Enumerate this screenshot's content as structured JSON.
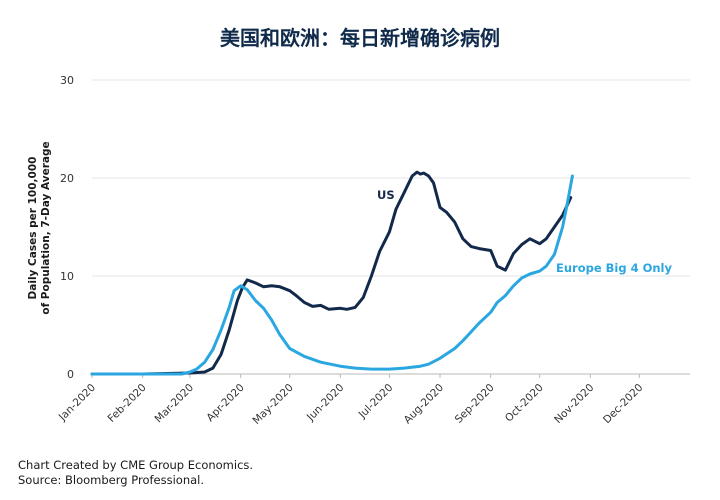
{
  "title": "美国和欧洲：每日新增确诊病例",
  "footer": {
    "line1": "Chart Created by CME Group Economics.",
    "line2": "Source: Bloomberg Professional."
  },
  "chart_data": {
    "type": "line",
    "ylabel": "Daily Cases per 100,000\nof Population, 7-Day Average",
    "xlabel": "",
    "ylim": [
      0,
      30
    ],
    "yticks": [
      0,
      10,
      20,
      30
    ],
    "xticks": [
      "Jan-2020",
      "Feb-2020",
      "Mar-2020",
      "Apr-2020",
      "May-2020",
      "Jun-2020",
      "Jul-2020",
      "Aug-2020",
      "Sep-2020",
      "Oct-2020",
      "Nov-2020",
      "Dec-2020"
    ],
    "grid": true,
    "series": [
      {
        "name": "US",
        "color": "#13294b",
        "x": [
          "2020-01-01",
          "2020-02-01",
          "2020-03-01",
          "2020-03-10",
          "2020-03-15",
          "2020-03-20",
          "2020-03-25",
          "2020-03-30",
          "2020-04-02",
          "2020-04-05",
          "2020-04-10",
          "2020-04-15",
          "2020-04-20",
          "2020-04-25",
          "2020-05-01",
          "2020-05-05",
          "2020-05-10",
          "2020-05-15",
          "2020-05-20",
          "2020-05-25",
          "2020-06-01",
          "2020-06-05",
          "2020-06-10",
          "2020-06-15",
          "2020-06-20",
          "2020-06-25",
          "2020-07-01",
          "2020-07-05",
          "2020-07-10",
          "2020-07-15",
          "2020-07-18",
          "2020-07-20",
          "2020-07-22",
          "2020-07-25",
          "2020-07-28",
          "2020-08-01",
          "2020-08-05",
          "2020-08-10",
          "2020-08-15",
          "2020-08-20",
          "2020-08-25",
          "2020-09-01",
          "2020-09-05",
          "2020-09-10",
          "2020-09-15",
          "2020-09-20",
          "2020-09-25",
          "2020-10-01",
          "2020-10-05",
          "2020-10-10",
          "2020-10-15",
          "2020-10-20"
        ],
        "values": [
          0,
          0,
          0.1,
          0.2,
          0.6,
          2.0,
          4.5,
          7.5,
          8.8,
          9.6,
          9.3,
          8.9,
          9.0,
          8.9,
          8.5,
          8.0,
          7.3,
          6.9,
          7.0,
          6.6,
          6.7,
          6.6,
          6.8,
          7.8,
          10.0,
          12.5,
          14.5,
          16.8,
          18.5,
          20.2,
          20.6,
          20.4,
          20.5,
          20.2,
          19.5,
          17.0,
          16.5,
          15.5,
          13.8,
          13.0,
          12.8,
          12.6,
          11.0,
          10.6,
          12.3,
          13.2,
          13.8,
          13.3,
          13.8,
          15.0,
          16.2,
          18.0
        ]
      },
      {
        "name": "Europe Big 4 Only",
        "color": "#2aa7e0",
        "x": [
          "2020-01-01",
          "2020-02-01",
          "2020-02-25",
          "2020-03-01",
          "2020-03-05",
          "2020-03-10",
          "2020-03-15",
          "2020-03-20",
          "2020-03-25",
          "2020-03-28",
          "2020-04-01",
          "2020-04-05",
          "2020-04-10",
          "2020-04-15",
          "2020-04-20",
          "2020-04-25",
          "2020-05-01",
          "2020-05-10",
          "2020-05-20",
          "2020-06-01",
          "2020-06-10",
          "2020-06-20",
          "2020-07-01",
          "2020-07-10",
          "2020-07-20",
          "2020-07-25",
          "2020-08-01",
          "2020-08-10",
          "2020-08-15",
          "2020-08-20",
          "2020-08-25",
          "2020-09-01",
          "2020-09-05",
          "2020-09-10",
          "2020-09-15",
          "2020-09-20",
          "2020-09-25",
          "2020-10-01",
          "2020-10-05",
          "2020-10-10",
          "2020-10-15",
          "2020-10-18",
          "2020-10-21"
        ],
        "values": [
          0,
          0,
          0,
          0.2,
          0.5,
          1.2,
          2.5,
          4.5,
          6.8,
          8.5,
          9.0,
          8.6,
          7.5,
          6.7,
          5.5,
          4.0,
          2.6,
          1.8,
          1.2,
          0.8,
          0.6,
          0.5,
          0.5,
          0.6,
          0.8,
          1.0,
          1.6,
          2.6,
          3.4,
          4.3,
          5.2,
          6.3,
          7.3,
          8.0,
          9.0,
          9.8,
          10.2,
          10.5,
          11.0,
          12.2,
          15.0,
          17.5,
          20.2
        ]
      }
    ],
    "annotations": [
      {
        "text": "US",
        "series": 0
      },
      {
        "text": "Europe Big 4 Only",
        "series": 1
      }
    ]
  }
}
